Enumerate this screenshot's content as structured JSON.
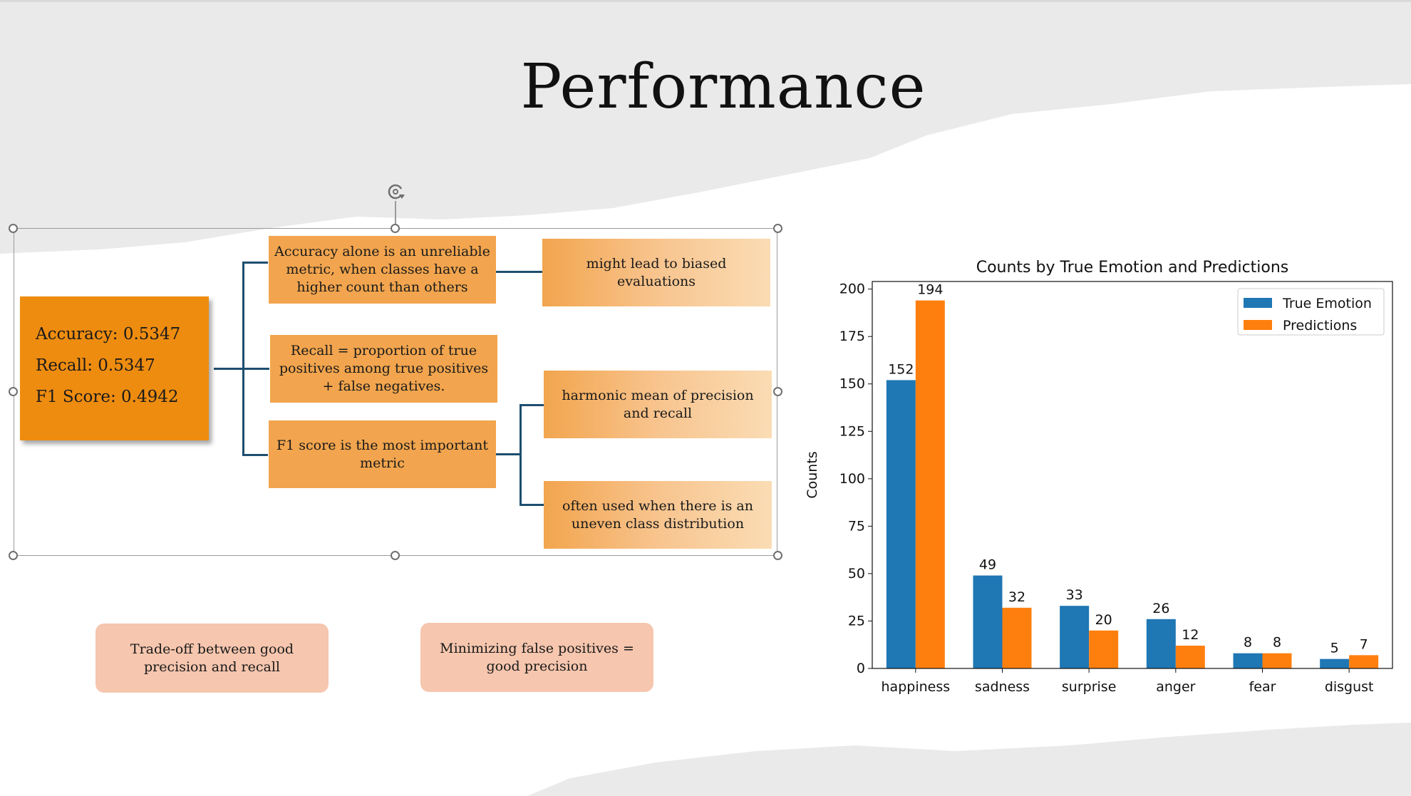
{
  "slide": {
    "title": "Performance",
    "metrics": {
      "accuracy": "Accuracy: 0.5347",
      "recall": "Recall: 0.5347",
      "f1": "F1 Score: 0.4942"
    },
    "diagram": {
      "level1": [
        "Accuracy alone is an unreliable metric, when classes have a higher count than others",
        "Recall = proportion of true positives among true positives + false negatives.",
        "F1 score is the most important metric"
      ],
      "level2": [
        "might lead to biased evaluations",
        "harmonic mean of precision and recall",
        "often used when there is an uneven class distribution"
      ]
    },
    "notes": [
      "Trade-off between good precision and recall",
      "Minimizing false positives = good precision"
    ],
    "icons": {
      "rotate_handle": "rotate-icon"
    },
    "colors": {
      "metrics_box": "#ee8c10",
      "level1_box": "#f2a54e",
      "level2_gradient_end": "#fadcb4",
      "note_box": "#f6c6ae",
      "connector": "#1d4e6f",
      "series_true": "#1f77b4",
      "series_pred": "#ff7f0e"
    }
  },
  "chart_data": {
    "type": "bar",
    "title": "Counts by True Emotion and Predictions",
    "xlabel": "",
    "ylabel": "Counts",
    "categories": [
      "happiness",
      "sadness",
      "surprise",
      "anger",
      "fear",
      "disgust"
    ],
    "series": [
      {
        "name": "True Emotion",
        "values": [
          152,
          49,
          33,
          26,
          8,
          5
        ]
      },
      {
        "name": "Predictions",
        "values": [
          194,
          32,
          20,
          12,
          8,
          7
        ]
      }
    ],
    "ylim": [
      0,
      204
    ],
    "yticks": [
      0,
      25,
      50,
      75,
      100,
      125,
      150,
      175,
      200
    ],
    "legend": "top-right",
    "grid": false
  }
}
